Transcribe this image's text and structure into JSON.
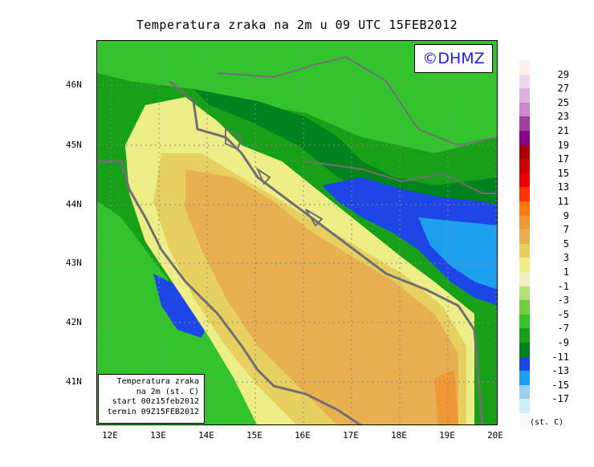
{
  "title": "Temperatura zraka na 2m u 09 UTC 15FEB2012",
  "logo": "©DHMZ",
  "info_box": {
    "line1": "Temperatura zraka",
    "line2": "na 2m (st. C)",
    "line3": "start 00z15feb2012",
    "line4": "termin 09Z15FEB2012"
  },
  "lat_labels": [
    "46N",
    "45N",
    "44N",
    "43N",
    "42N",
    "41N"
  ],
  "lon_labels": [
    "12E",
    "13E",
    "14E",
    "15E",
    "16E",
    "17E",
    "18E",
    "19E",
    "20E"
  ],
  "legend": {
    "colors": [
      "#fff0e8",
      "#eed8ee",
      "#e0b0e0",
      "#cc88cc",
      "#a040a0",
      "#880088",
      "#aa0000",
      "#cc0000",
      "#ee0000",
      "#ff3300",
      "#ff7711",
      "#ee9933",
      "#e8b050",
      "#e8d060",
      "#eeee88",
      "#f0f0c0",
      "#b4e078",
      "#70d040",
      "#32c32d",
      "#18a018",
      "#00821e",
      "#1e46e6",
      "#1ea0f0",
      "#a0d0f0",
      "#d0eef8",
      "#f8fcfc"
    ],
    "labels": [
      "29",
      "27",
      "25",
      "23",
      "21",
      "19",
      "17",
      "15",
      "13",
      "11",
      "9",
      "7",
      "5",
      "3",
      "1",
      "-1",
      "-3",
      "-5",
      "-7",
      "-9",
      "-11",
      "-13",
      "-15",
      "-17"
    ],
    "units": "(st. C)"
  },
  "map_colors": {
    "cold_blue": "#1e46e6",
    "light_blue": "#1ea0f0",
    "dark_green": "#00821e",
    "green": "#18a018",
    "light_green": "#32c32d",
    "pale_green": "#70d040",
    "pale_yellow": "#eeee88",
    "yellow": "#e8d060",
    "orange": "#e8b050",
    "dark_orange": "#ee9933",
    "coast_gray": "#707070"
  }
}
